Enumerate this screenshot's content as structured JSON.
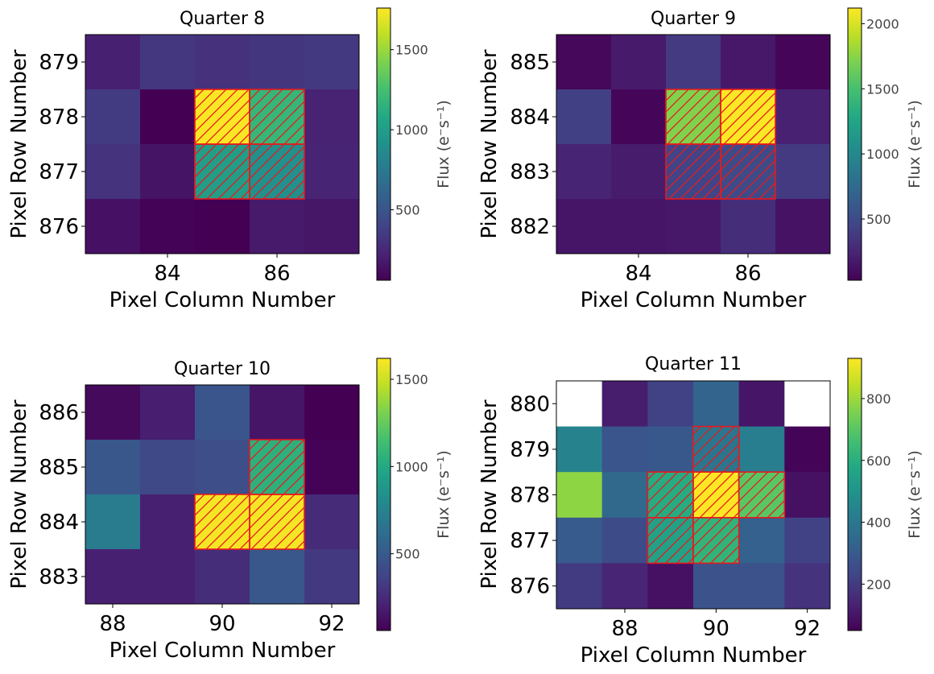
{
  "chart_data": [
    {
      "type": "heatmap",
      "title": "Quarter 8",
      "xlabel": "Pixel Column Number",
      "ylabel": "Pixel Row Number",
      "colorbar_label": "Flux (e⁻s⁻¹)",
      "x_range": [
        82.5,
        87.5
      ],
      "y_range": [
        875.5,
        879.5
      ],
      "xticks": [
        84,
        86
      ],
      "yticks": [
        876,
        877,
        878,
        879
      ],
      "cbar_range": [
        60,
        1760
      ],
      "cbar_ticks": [
        500,
        1000,
        1500
      ],
      "columns": [
        83,
        84,
        85,
        86,
        87
      ],
      "rows": [
        879,
        878,
        877,
        876
      ],
      "values": [
        [
          210,
          330,
          300,
          320,
          340
        ],
        [
          350,
          60,
          1750,
          1180,
          220
        ],
        [
          310,
          150,
          1000,
          900,
          230
        ],
        [
          140,
          70,
          60,
          180,
          160
        ]
      ],
      "aperture": [
        [
          85,
          878
        ],
        [
          86,
          878
        ],
        [
          85,
          877
        ],
        [
          86,
          877
        ]
      ]
    },
    {
      "type": "heatmap",
      "title": "Quarter 9",
      "xlabel": "Pixel Column Number",
      "ylabel": "Pixel Row Number",
      "colorbar_label": "Flux (e⁻s⁻¹)",
      "x_range": [
        82.5,
        87.5
      ],
      "y_range": [
        881.5,
        885.5
      ],
      "xticks": [
        84,
        86
      ],
      "yticks": [
        882,
        883,
        884,
        885
      ],
      "cbar_range": [
        30,
        2120
      ],
      "cbar_ticks": [
        500,
        1000,
        1500,
        2000
      ],
      "columns": [
        83,
        84,
        85,
        86,
        87
      ],
      "rows": [
        885,
        884,
        883,
        882
      ],
      "values": [
        [
          70,
          180,
          380,
          170,
          60
        ],
        [
          420,
          60,
          1720,
          2110,
          220
        ],
        [
          240,
          190,
          450,
          500,
          380
        ],
        [
          150,
          150,
          170,
          300,
          130
        ]
      ],
      "aperture": [
        [
          85,
          884
        ],
        [
          86,
          884
        ],
        [
          85,
          883
        ],
        [
          86,
          883
        ]
      ]
    },
    {
      "type": "heatmap",
      "title": "Quarter 10",
      "xlabel": "Pixel Column Number",
      "ylabel": "Pixel Row Number",
      "colorbar_label": "Flux (e⁻s⁻¹)",
      "x_range": [
        87.5,
        92.5
      ],
      "y_range": [
        882.5,
        886.5
      ],
      "xticks": [
        88,
        90,
        92
      ],
      "yticks": [
        883,
        884,
        885,
        886
      ],
      "cbar_range": [
        60,
        1620
      ],
      "cbar_ticks": [
        500,
        1000,
        1500
      ],
      "columns": [
        88,
        89,
        90,
        91,
        92
      ],
      "rows": [
        886,
        885,
        884,
        883
      ],
      "values": [
        [
          100,
          190,
          470,
          150,
          60
        ],
        [
          480,
          400,
          430,
          1050,
          70
        ],
        [
          700,
          200,
          1600,
          1600,
          250
        ],
        [
          200,
          200,
          260,
          480,
          320
        ]
      ],
      "aperture": [
        [
          91,
          885
        ],
        [
          90,
          884
        ],
        [
          91,
          884
        ]
      ]
    },
    {
      "type": "heatmap",
      "title": "Quarter 11",
      "xlabel": "Pixel Column Number",
      "ylabel": "Pixel Row Number",
      "colorbar_label": "Flux (e⁻s⁻¹)",
      "x_range": [
        86.5,
        92.5
      ],
      "y_range": [
        875.5,
        880.5
      ],
      "xticks": [
        88,
        90,
        92
      ],
      "yticks": [
        876,
        877,
        878,
        879,
        880
      ],
      "cbar_range": [
        50,
        930
      ],
      "cbar_ticks": [
        200,
        400,
        600,
        800
      ],
      "columns": [
        87,
        88,
        89,
        90,
        91,
        92
      ],
      "rows": [
        880,
        879,
        878,
        877,
        876
      ],
      "values": [
        [
          null,
          120,
          220,
          330,
          100,
          null
        ],
        [
          440,
          280,
          290,
          390,
          420,
          60
        ],
        [
          780,
          350,
          590,
          930,
          700,
          90
        ],
        [
          300,
          250,
          550,
          620,
          320,
          220
        ],
        [
          200,
          140,
          90,
          270,
          270,
          180
        ]
      ],
      "aperture": [
        [
          90,
          879
        ],
        [
          89,
          878
        ],
        [
          90,
          878
        ],
        [
          91,
          878
        ],
        [
          89,
          877
        ],
        [
          90,
          877
        ]
      ]
    }
  ]
}
